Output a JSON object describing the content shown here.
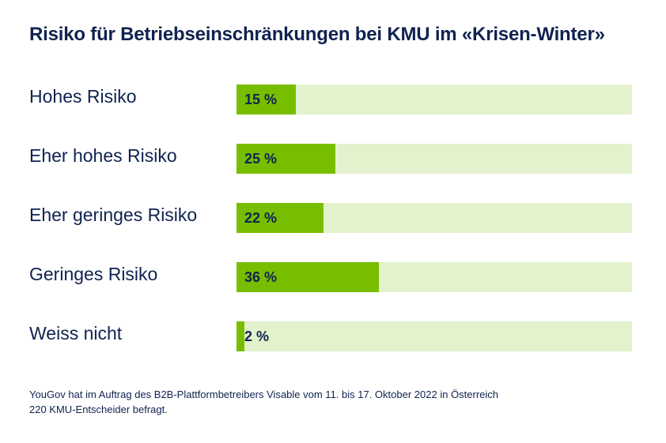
{
  "chart_data": {
    "type": "bar",
    "orientation": "horizontal",
    "title": "Risiko für Betriebseinschränkungen bei KMU im «Krisen-Winter»",
    "categories": [
      "Hohes Risiko",
      "Eher hohes Risiko",
      "Eher geringes Risiko",
      "Geringes Risiko",
      "Weiss nicht"
    ],
    "values": [
      15,
      25,
      22,
      36,
      2
    ],
    "value_labels": [
      "15 %",
      "25 %",
      "22 %",
      "36 %",
      "2 %"
    ],
    "xlim": [
      0,
      100
    ],
    "grid": false,
    "legend": "none"
  },
  "colors": {
    "bar": "#78be00",
    "track": "#e3f2cc",
    "text": "#0f2350"
  },
  "source": {
    "line1": "YouGov hat im Auftrag des B2B-Plattformbetreibers Visable vom 11. bis 17. Oktober 2022 in Österreich",
    "line2": "220 KMU-Entscheider befragt."
  }
}
